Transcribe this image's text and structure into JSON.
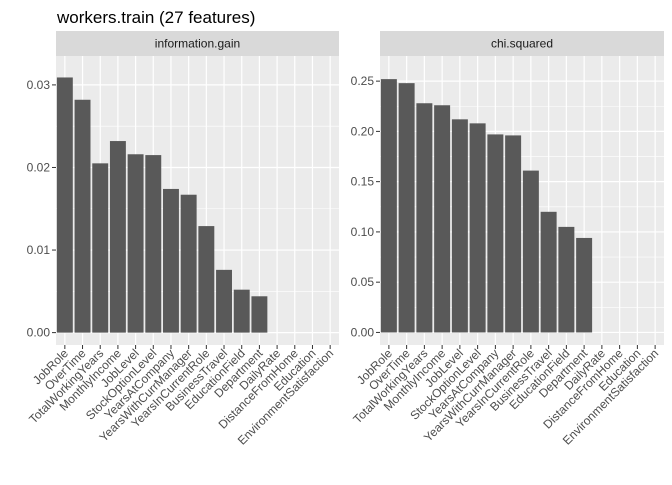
{
  "title": "workers.train (27 features)",
  "colors": {
    "panel_background": "#ebebeb",
    "strip_background": "#d9d9d9",
    "grid_major": "#ffffff",
    "bar_fill": "#595959",
    "axis_text": "#4d4d4d",
    "strip_text": "#1a1a1a",
    "title_text": "#000000"
  },
  "chart_data": [
    {
      "type": "bar",
      "facet": "information.gain",
      "categories": [
        "JobRole",
        "OverTime",
        "TotalWorkingYears",
        "MonthlyIncome",
        "JobLevel",
        "StockOptionLevel",
        "YearsAtCompany",
        "YearsWithCurrManager",
        "YearsInCurrentRole",
        "BusinessTravel",
        "EducationField",
        "Department",
        "DailyRate",
        "DistanceFromHome",
        "Education",
        "EnvironmentSatisfaction"
      ],
      "values": [
        0.0309,
        0.0282,
        0.0205,
        0.0232,
        0.0216,
        0.0215,
        0.0174,
        0.0167,
        0.0129,
        0.0076,
        0.0052,
        0.0044,
        0,
        0,
        0,
        0
      ],
      "ylim": [
        -0.0015,
        0.0335
      ],
      "yticks": [
        0,
        0.01,
        0.02,
        0.03
      ],
      "ytick_labels": [
        "0.00",
        "0.01",
        "0.02",
        "0.03"
      ],
      "grid": true
    },
    {
      "type": "bar",
      "facet": "chi.squared",
      "categories": [
        "JobRole",
        "OverTime",
        "TotalWorkingYears",
        "MonthlyIncome",
        "JobLevel",
        "StockOptionLevel",
        "YearsAtCompany",
        "YearsWithCurrManager",
        "YearsInCurrentRole",
        "BusinessTravel",
        "EducationField",
        "Department",
        "DailyRate",
        "DistanceFromHome",
        "Education",
        "EnvironmentSatisfaction"
      ],
      "values": [
        0.252,
        0.248,
        0.228,
        0.226,
        0.212,
        0.208,
        0.197,
        0.196,
        0.161,
        0.12,
        0.105,
        0.094,
        0,
        0,
        0,
        0
      ],
      "ylim": [
        -0.0125,
        0.275
      ],
      "yticks": [
        0,
        0.05,
        0.1,
        0.15,
        0.2,
        0.25
      ],
      "ytick_labels": [
        "0.00",
        "0.05",
        "0.10",
        "0.15",
        "0.20",
        "0.25"
      ],
      "grid": true
    }
  ]
}
